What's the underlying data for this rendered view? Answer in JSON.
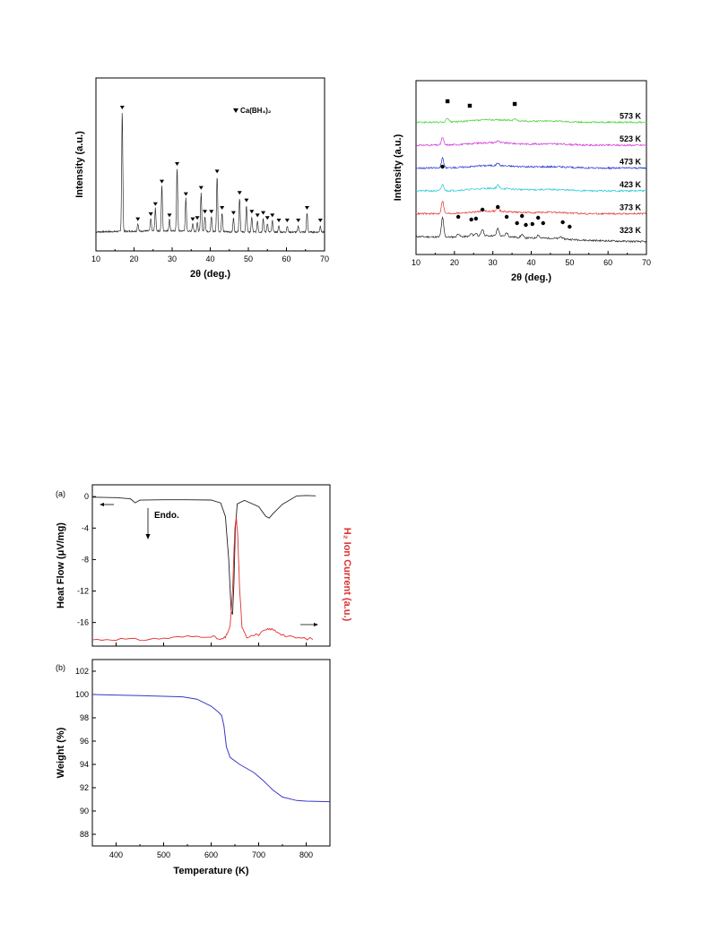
{
  "chart_data": [
    {
      "id": "xrd-room-temp",
      "type": "line",
      "xlabel": "2θ (deg.)",
      "ylabel": "Intensity (a.u.)",
      "xlim": [
        10,
        70
      ],
      "xticks": [
        "10",
        "20",
        "30",
        "40",
        "50",
        "60",
        "70"
      ],
      "legend": {
        "marker": "▼",
        "label": "Ca(BH₄)₂",
        "placement": "top-right"
      },
      "color": "#333333",
      "peaks": [
        {
          "x": 16.9,
          "h": 0.95
        },
        {
          "x": 21.0,
          "h": 0.06
        },
        {
          "x": 24.4,
          "h": 0.1
        },
        {
          "x": 25.6,
          "h": 0.18
        },
        {
          "x": 27.3,
          "h": 0.36
        },
        {
          "x": 29.3,
          "h": 0.09
        },
        {
          "x": 31.3,
          "h": 0.5
        },
        {
          "x": 33.6,
          "h": 0.26
        },
        {
          "x": 35.4,
          "h": 0.06
        },
        {
          "x": 36.6,
          "h": 0.07
        },
        {
          "x": 37.6,
          "h": 0.31
        },
        {
          "x": 38.6,
          "h": 0.12
        },
        {
          "x": 40.3,
          "h": 0.12
        },
        {
          "x": 41.8,
          "h": 0.44
        },
        {
          "x": 43.1,
          "h": 0.15
        },
        {
          "x": 46.1,
          "h": 0.11
        },
        {
          "x": 47.7,
          "h": 0.27
        },
        {
          "x": 49.5,
          "h": 0.21
        },
        {
          "x": 50.9,
          "h": 0.12
        },
        {
          "x": 52.4,
          "h": 0.09
        },
        {
          "x": 53.9,
          "h": 0.11
        },
        {
          "x": 55.0,
          "h": 0.07
        },
        {
          "x": 56.3,
          "h": 0.09
        },
        {
          "x": 58.0,
          "h": 0.05
        },
        {
          "x": 60.2,
          "h": 0.05
        },
        {
          "x": 63.1,
          "h": 0.05
        },
        {
          "x": 65.4,
          "h": 0.15
        },
        {
          "x": 68.9,
          "h": 0.05
        }
      ]
    },
    {
      "id": "xrd-temperature-series",
      "type": "line",
      "xlabel": "2θ (deg.)",
      "ylabel": "Intensity (a.u.)",
      "xlim": [
        10,
        70
      ],
      "xticks": [
        "10",
        "20",
        "30",
        "40",
        "50",
        "60",
        "70"
      ],
      "series": [
        {
          "name": "323 K",
          "color": "#222222",
          "offset": 0,
          "peaks": [
            {
              "x": 16.9,
              "h": 0.9
            },
            {
              "x": 21.0,
              "h": 0.15
            },
            {
              "x": 24.4,
              "h": 0.12
            },
            {
              "x": 25.6,
              "h": 0.14
            },
            {
              "x": 27.3,
              "h": 0.3
            },
            {
              "x": 31.3,
              "h": 0.35
            },
            {
              "x": 33.6,
              "h": 0.18
            },
            {
              "x": 37.6,
              "h": 0.15
            },
            {
              "x": 41.8,
              "h": 0.15
            },
            {
              "x": 47.7,
              "h": 0.1
            }
          ]
        },
        {
          "name": "373 K",
          "color": "#e03030",
          "offset": 1,
          "peaks": [
            {
              "x": 16.9,
              "h": 0.6
            },
            {
              "x": 27.3,
              "h": 0.15
            },
            {
              "x": 31.3,
              "h": 0.2
            }
          ]
        },
        {
          "name": "423 K",
          "color": "#20c8d8",
          "offset": 2,
          "peaks": [
            {
              "x": 16.9,
              "h": 0.3
            },
            {
              "x": 31.3,
              "h": 0.15
            }
          ]
        },
        {
          "name": "473 K",
          "color": "#2030d0",
          "offset": 3,
          "peaks": [
            {
              "x": 16.9,
              "h": 0.45
            },
            {
              "x": 31.3,
              "h": 0.12
            }
          ]
        },
        {
          "name": "523 K",
          "color": "#d030d8",
          "offset": 4,
          "peaks": [
            {
              "x": 16.9,
              "h": 0.35
            },
            {
              "x": 31.3,
              "h": 0.1
            }
          ]
        },
        {
          "name": "573 K",
          "color": "#40d030",
          "offset": 5,
          "peaks": [
            {
              "x": 18.2,
              "h": 0.2
            },
            {
              "x": 35.7,
              "h": 0.1
            }
          ]
        }
      ],
      "markers": {
        "circle": [
          16.9,
          21.0,
          24.4,
          25.6,
          27.3,
          31.3,
          33.6,
          36.3,
          37.6,
          38.6,
          40.3,
          41.8,
          43.1,
          48.2,
          50.0
        ],
        "square": [
          18.2,
          24.0,
          35.7
        ]
      }
    },
    {
      "id": "dsc-ms",
      "panel_label": "(a)",
      "type": "line",
      "ylabel": "Heat Flow (μV/mg)",
      "y2label": "H₂ Ion Current (a.u.)",
      "xlim": [
        350,
        850
      ],
      "ylim": [
        -19,
        1.5
      ],
      "yticks": [
        "0",
        "-4",
        "-8",
        "-12",
        "-16"
      ],
      "annotation": "Endo.",
      "heat_flow_color": "#222222",
      "ion_current_color": "#e03030",
      "heat_flow": [
        [
          350,
          -0.05
        ],
        [
          400,
          -0.15
        ],
        [
          430,
          -0.3
        ],
        [
          440,
          -0.8
        ],
        [
          450,
          -0.45
        ],
        [
          500,
          -0.4
        ],
        [
          550,
          -0.4
        ],
        [
          600,
          -0.45
        ],
        [
          620,
          -0.8
        ],
        [
          630,
          -2.5
        ],
        [
          637,
          -8.0
        ],
        [
          642,
          -14.5
        ],
        [
          645,
          -15.0
        ],
        [
          648,
          -11.0
        ],
        [
          651,
          -4.0
        ],
        [
          655,
          -0.9
        ],
        [
          670,
          -0.5
        ],
        [
          700,
          -1.3
        ],
        [
          715,
          -2.5
        ],
        [
          722,
          -2.75
        ],
        [
          730,
          -2.2
        ],
        [
          750,
          -1.0
        ],
        [
          780,
          0.1
        ],
        [
          800,
          0.15
        ],
        [
          820,
          0.1
        ]
      ],
      "ion_current": [
        [
          350,
          -18.2
        ],
        [
          400,
          -18.1
        ],
        [
          450,
          -18.2
        ],
        [
          500,
          -18.0
        ],
        [
          550,
          -17.8
        ],
        [
          600,
          -17.7
        ],
        [
          620,
          -18.2
        ],
        [
          630,
          -17.9
        ],
        [
          640,
          -16.5
        ],
        [
          645,
          -12.0
        ],
        [
          650,
          -4.0
        ],
        [
          653,
          -2.7
        ],
        [
          656,
          -5.0
        ],
        [
          660,
          -12.0
        ],
        [
          665,
          -16.5
        ],
        [
          675,
          -17.8
        ],
        [
          700,
          -17.5
        ],
        [
          715,
          -17.0
        ],
        [
          725,
          -16.8
        ],
        [
          740,
          -17.2
        ],
        [
          760,
          -17.8
        ],
        [
          790,
          -18.0
        ],
        [
          820,
          -18.1
        ]
      ]
    },
    {
      "id": "tga",
      "panel_label": "(b)",
      "type": "line",
      "xlabel": "Temperature (K)",
      "ylabel": "Weight (%)",
      "xlim": [
        350,
        850
      ],
      "ylim": [
        87,
        103
      ],
      "xticks": [
        "400",
        "500",
        "600",
        "700",
        "800"
      ],
      "yticks": [
        "88",
        "90",
        "92",
        "94",
        "96",
        "98",
        "100",
        "102"
      ],
      "color": "#3838c8",
      "values": [
        [
          350,
          100.0
        ],
        [
          400,
          99.95
        ],
        [
          450,
          99.9
        ],
        [
          500,
          99.85
        ],
        [
          540,
          99.8
        ],
        [
          570,
          99.6
        ],
        [
          600,
          99.0
        ],
        [
          615,
          98.5
        ],
        [
          622,
          98.2
        ],
        [
          627,
          97.3
        ],
        [
          632,
          95.5
        ],
        [
          640,
          94.6
        ],
        [
          660,
          94.0
        ],
        [
          690,
          93.3
        ],
        [
          710,
          92.6
        ],
        [
          730,
          91.8
        ],
        [
          750,
          91.2
        ],
        [
          780,
          90.9
        ],
        [
          800,
          90.85
        ],
        [
          850,
          90.8
        ]
      ]
    }
  ]
}
